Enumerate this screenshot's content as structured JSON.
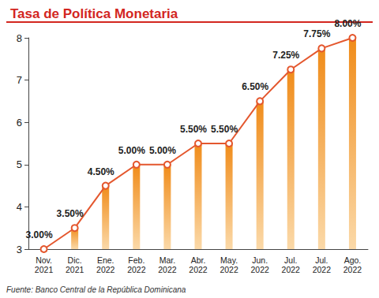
{
  "chart_data": {
    "type": "line",
    "title": "Tasa de Política Monetaria",
    "source": "Fuente: Banco Central de la República Dominicana",
    "categories": [
      "Nov. 2021",
      "Dic. 2021",
      "Ene. 2022",
      "Feb. 2022",
      "Mar. 2022",
      "Abr. 2022",
      "May. 2022",
      "Jun. 2022",
      "Jul. 2022",
      "Jul. 2022",
      "Ago. 2022"
    ],
    "values": [
      3,
      3.5,
      4.5,
      5,
      5,
      5.5,
      5.5,
      6.5,
      7.25,
      7.75,
      8
    ],
    "value_labels": [
      "3.00%",
      "3.50%",
      "4.50%",
      "5.00%",
      "5.00%",
      "5.50%",
      "5.50%",
      "6.50%",
      "7.25%",
      "7.75%",
      "8.00%"
    ],
    "data_labels": true,
    "color": "#e4572e",
    "marker": "circle",
    "ylim": [
      3,
      8
    ],
    "yticks": [
      3,
      4,
      5,
      6,
      7,
      8
    ],
    "grid": false
  }
}
